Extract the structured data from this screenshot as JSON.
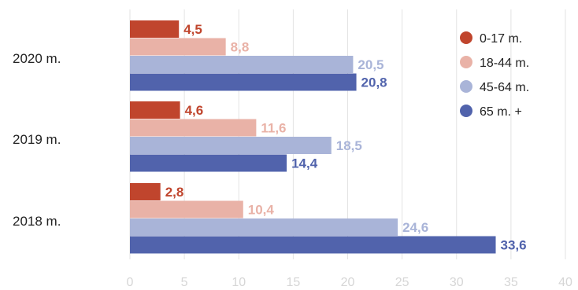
{
  "chart_data": {
    "type": "bar",
    "orientation": "horizontal",
    "categories": [
      "2020 m.",
      "2019 m.",
      "2018 m."
    ],
    "series": [
      {
        "name": "0-17 m.",
        "color": "#c0452d",
        "values": [
          4.5,
          4.6,
          2.8
        ],
        "labels": [
          "4,5",
          "4,6",
          "2,8"
        ]
      },
      {
        "name": "18-44 m.",
        "color": "#e9b2a7",
        "values": [
          8.8,
          11.6,
          10.4
        ],
        "labels": [
          "8,8",
          "11,6",
          "10,4"
        ]
      },
      {
        "name": "45-64 m.",
        "color": "#a9b4d8",
        "values": [
          20.5,
          18.5,
          24.6
        ],
        "labels": [
          "20,5",
          "18,5",
          "24,6"
        ]
      },
      {
        "name": "65 m. +",
        "color": "#5163ac",
        "values": [
          20.8,
          14.4,
          33.6
        ],
        "labels": [
          "20,8",
          "14,4",
          "33,6"
        ]
      }
    ],
    "xlim": [
      0,
      40
    ],
    "xticks": [
      0,
      5,
      10,
      15,
      20,
      25,
      30,
      35,
      40
    ],
    "grid": true,
    "legend": "top-right",
    "title": "",
    "xlabel": "",
    "ylabel": ""
  }
}
